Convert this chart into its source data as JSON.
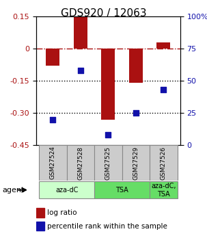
{
  "title": "GDS920 / 12063",
  "samples": [
    "GSM27524",
    "GSM27528",
    "GSM27525",
    "GSM27529",
    "GSM27526"
  ],
  "log_ratios": [
    -0.08,
    0.15,
    -0.33,
    -0.16,
    0.03
  ],
  "percentile_ranks": [
    20,
    58,
    8,
    25,
    43
  ],
  "left_ylim": [
    -0.45,
    0.15
  ],
  "right_ylim": [
    0,
    100
  ],
  "left_yticks": [
    0.15,
    0.0,
    -0.15,
    -0.3,
    -0.45
  ],
  "right_yticks": [
    100,
    75,
    50,
    25,
    0
  ],
  "bar_color": "#aa1111",
  "dot_color": "#1111aa",
  "bar_width": 0.5,
  "dot_size": 40,
  "legend_bar_label": "log ratio",
  "legend_dot_label": "percentile rank within the sample",
  "agent_label_color": "#ccffcc",
  "agent_groups": [
    {
      "label": "aza-dC",
      "cols": [
        0,
        1
      ],
      "color": "#ccffcc"
    },
    {
      "label": "TSA",
      "cols": [
        2,
        3
      ],
      "color": "#66dd66"
    },
    {
      "label": "aza-dC,\nTSA",
      "cols": [
        4
      ],
      "color": "#66dd66"
    }
  ]
}
